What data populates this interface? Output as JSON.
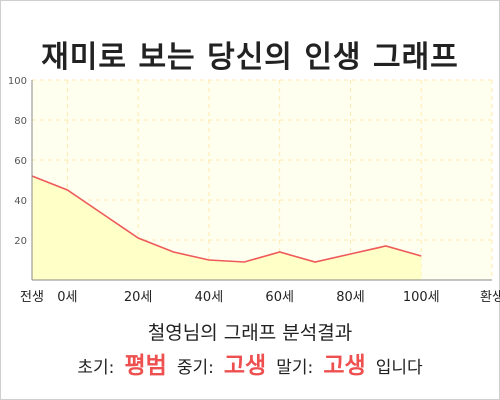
{
  "title": "재미로 보는 당신의 인생 그래프",
  "chart_data": {
    "type": "area",
    "x": [
      -1,
      0,
      1,
      2,
      3,
      4,
      5,
      6,
      7,
      8,
      9,
      10
    ],
    "x_ticks": [
      {
        "pos": -1,
        "label": "전생"
      },
      {
        "pos": 0,
        "label": "0세"
      },
      {
        "pos": 2,
        "label": "20세"
      },
      {
        "pos": 4,
        "label": "40세"
      },
      {
        "pos": 6,
        "label": "60세"
      },
      {
        "pos": 8,
        "label": "80세"
      },
      {
        "pos": 10,
        "label": "100세"
      },
      {
        "pos": 12,
        "label": "환생"
      }
    ],
    "xlim": [
      -1,
      12
    ],
    "values": [
      52,
      45,
      33,
      21,
      14,
      10,
      9,
      14,
      9,
      13,
      17,
      12
    ],
    "ylim": [
      0,
      100
    ],
    "yticks": [
      20,
      40,
      60,
      80,
      100
    ],
    "grid": true,
    "colors": {
      "line": "#ee5a5a",
      "fill": "#ffffc8",
      "plot_bg": "#fffff0",
      "grid": "#ffe9b0"
    }
  },
  "summary": "철영님의 그래프 분석결과",
  "verdict": {
    "early_label": "초기:",
    "early_value": "평범",
    "mid_label": "중기:",
    "mid_value": "고생",
    "late_label": "말기:",
    "late_value": "고생",
    "suffix": "입니다"
  }
}
